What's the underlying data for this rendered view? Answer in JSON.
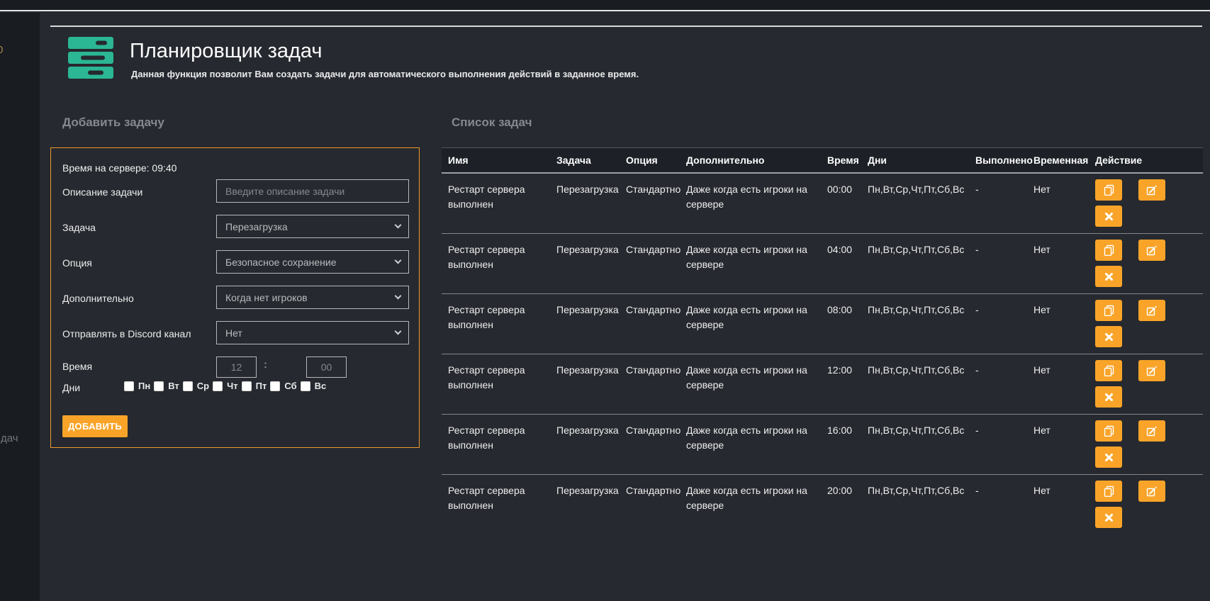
{
  "app": {
    "title": "Планировщик задач",
    "subtitle": "Данная функция позволит Вам создать задачи для автоматического выполнения действий в заданное время."
  },
  "sidebar": {
    "fragment_top": "0",
    "fragment_bottom": "дач"
  },
  "colors": {
    "accent_orange": "#f9a429",
    "panel_border_orange": "#ee9a2e",
    "icon_teal": "#2bb694",
    "background": "#26292f",
    "background_dark": "#191c21",
    "header_row": "#1d2026"
  },
  "add_task": {
    "heading": "Добавить задачу",
    "server_time": "Время на сервере: 09:40",
    "fields": {
      "description": {
        "label": "Описание задачи",
        "placeholder": "Введите описание задачи"
      },
      "task": {
        "label": "Задача",
        "value": "Перезагрузка"
      },
      "option": {
        "label": "Опция",
        "value": "Безопасное сохранение"
      },
      "additional": {
        "label": "Дополнительно",
        "value": "Когда нет игроков"
      },
      "discord": {
        "label": "Отправлять в Discord канал",
        "value": "Нет"
      },
      "time": {
        "label": "Время",
        "hours": "12",
        "separator": ":",
        "minutes": "00"
      },
      "days": {
        "label": "Дни",
        "options": [
          "Пн",
          "Вт",
          "Ср",
          "Чт",
          "Пт",
          "Сб",
          "Вс"
        ]
      }
    },
    "submit_label": "ДОБАВИТЬ"
  },
  "task_list": {
    "heading": "Список задач",
    "columns": [
      "Имя",
      "Задача",
      "Опция",
      "Дополнительно",
      "Время",
      "Дни",
      "Выполнено",
      "Временная",
      "Действие"
    ],
    "rows": [
      {
        "name": "Рестарт сервера выполнен",
        "task": "Перезагрузка",
        "option": "Стандартно",
        "additional": "Даже когда есть игроки на сервере",
        "time": "00:00",
        "days": "Пн,Вт,Ср,Чт,Пт,Сб,Вс",
        "done": "-",
        "temporary": "Нет"
      },
      {
        "name": "Рестарт сервера выполнен",
        "task": "Перезагрузка",
        "option": "Стандартно",
        "additional": "Даже когда есть игроки на сервере",
        "time": "04:00",
        "days": "Пн,Вт,Ср,Чт,Пт,Сб,Вс",
        "done": "-",
        "temporary": "Нет"
      },
      {
        "name": "Рестарт сервера выполнен",
        "task": "Перезагрузка",
        "option": "Стандартно",
        "additional": "Даже когда есть игроки на сервере",
        "time": "08:00",
        "days": "Пн,Вт,Ср,Чт,Пт,Сб,Вс",
        "done": "-",
        "temporary": "Нет"
      },
      {
        "name": "Рестарт сервера выполнен",
        "task": "Перезагрузка",
        "option": "Стандартно",
        "additional": "Даже когда есть игроки на сервере",
        "time": "12:00",
        "days": "Пн,Вт,Ср,Чт,Пт,Сб,Вс",
        "done": "-",
        "temporary": "Нет"
      },
      {
        "name": "Рестарт сервера выполнен",
        "task": "Перезагрузка",
        "option": "Стандартно",
        "additional": "Даже когда есть игроки на сервере",
        "time": "16:00",
        "days": "Пн,Вт,Ср,Чт,Пт,Сб,Вс",
        "done": "-",
        "temporary": "Нет"
      },
      {
        "name": "Рестарт сервера выполнен",
        "task": "Перезагрузка",
        "option": "Стандартно",
        "additional": "Даже когда есть игроки на сервере",
        "time": "20:00",
        "days": "Пн,Вт,Ср,Чт,Пт,Сб,Вс",
        "done": "-",
        "temporary": "Нет"
      }
    ],
    "action_icons": [
      "copy-icon",
      "edit-icon",
      "delete-icon"
    ]
  }
}
